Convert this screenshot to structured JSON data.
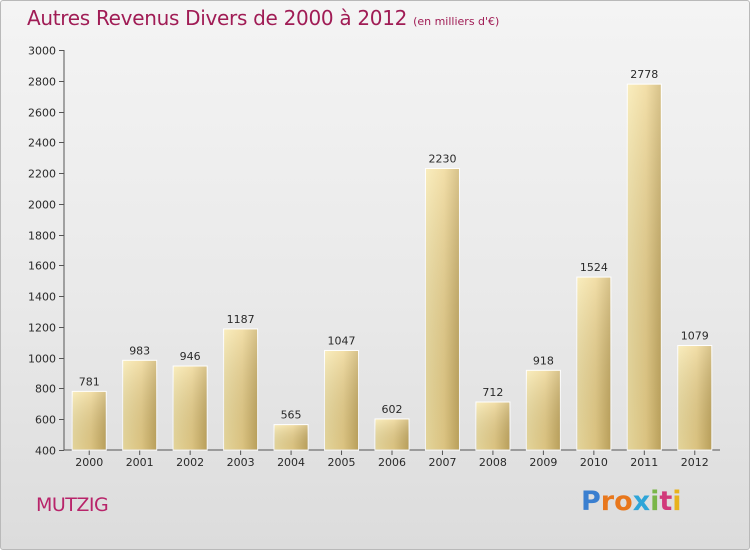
{
  "header": {
    "title": "Autres Revenus Divers de 2000 à 2012",
    "unit": "(en milliers d'€)"
  },
  "footer": {
    "city": "MUTZIG",
    "logo_letters": [
      "P",
      "r",
      "o",
      "x",
      "i",
      "t",
      "i"
    ],
    "logo_colors": [
      "#3a7fd0",
      "#e8771c",
      "#e8771c",
      "#2ea5d8",
      "#7ab648",
      "#d13a7a",
      "#e8b21c"
    ]
  },
  "colors": {
    "title": "#a01c55",
    "bar_light": "#f3dd9a",
    "bar_dark": "#c9ad62",
    "axis": "#555555",
    "grid": "#bfbfbf"
  },
  "chart_data": {
    "type": "bar",
    "categories": [
      "2000",
      "2001",
      "2002",
      "2003",
      "2004",
      "2005",
      "2006",
      "2007",
      "2008",
      "2009",
      "2010",
      "2011",
      "2012"
    ],
    "values": [
      781,
      983,
      946,
      1187,
      565,
      1047,
      602,
      2230,
      712,
      918,
      1524,
      2778,
      1079
    ],
    "yticks": [
      400,
      600,
      800,
      1000,
      1200,
      1400,
      1600,
      1800,
      2000,
      2200,
      2400,
      2600,
      2800,
      3000
    ],
    "ylim": [
      400,
      3000
    ],
    "grid": false
  }
}
